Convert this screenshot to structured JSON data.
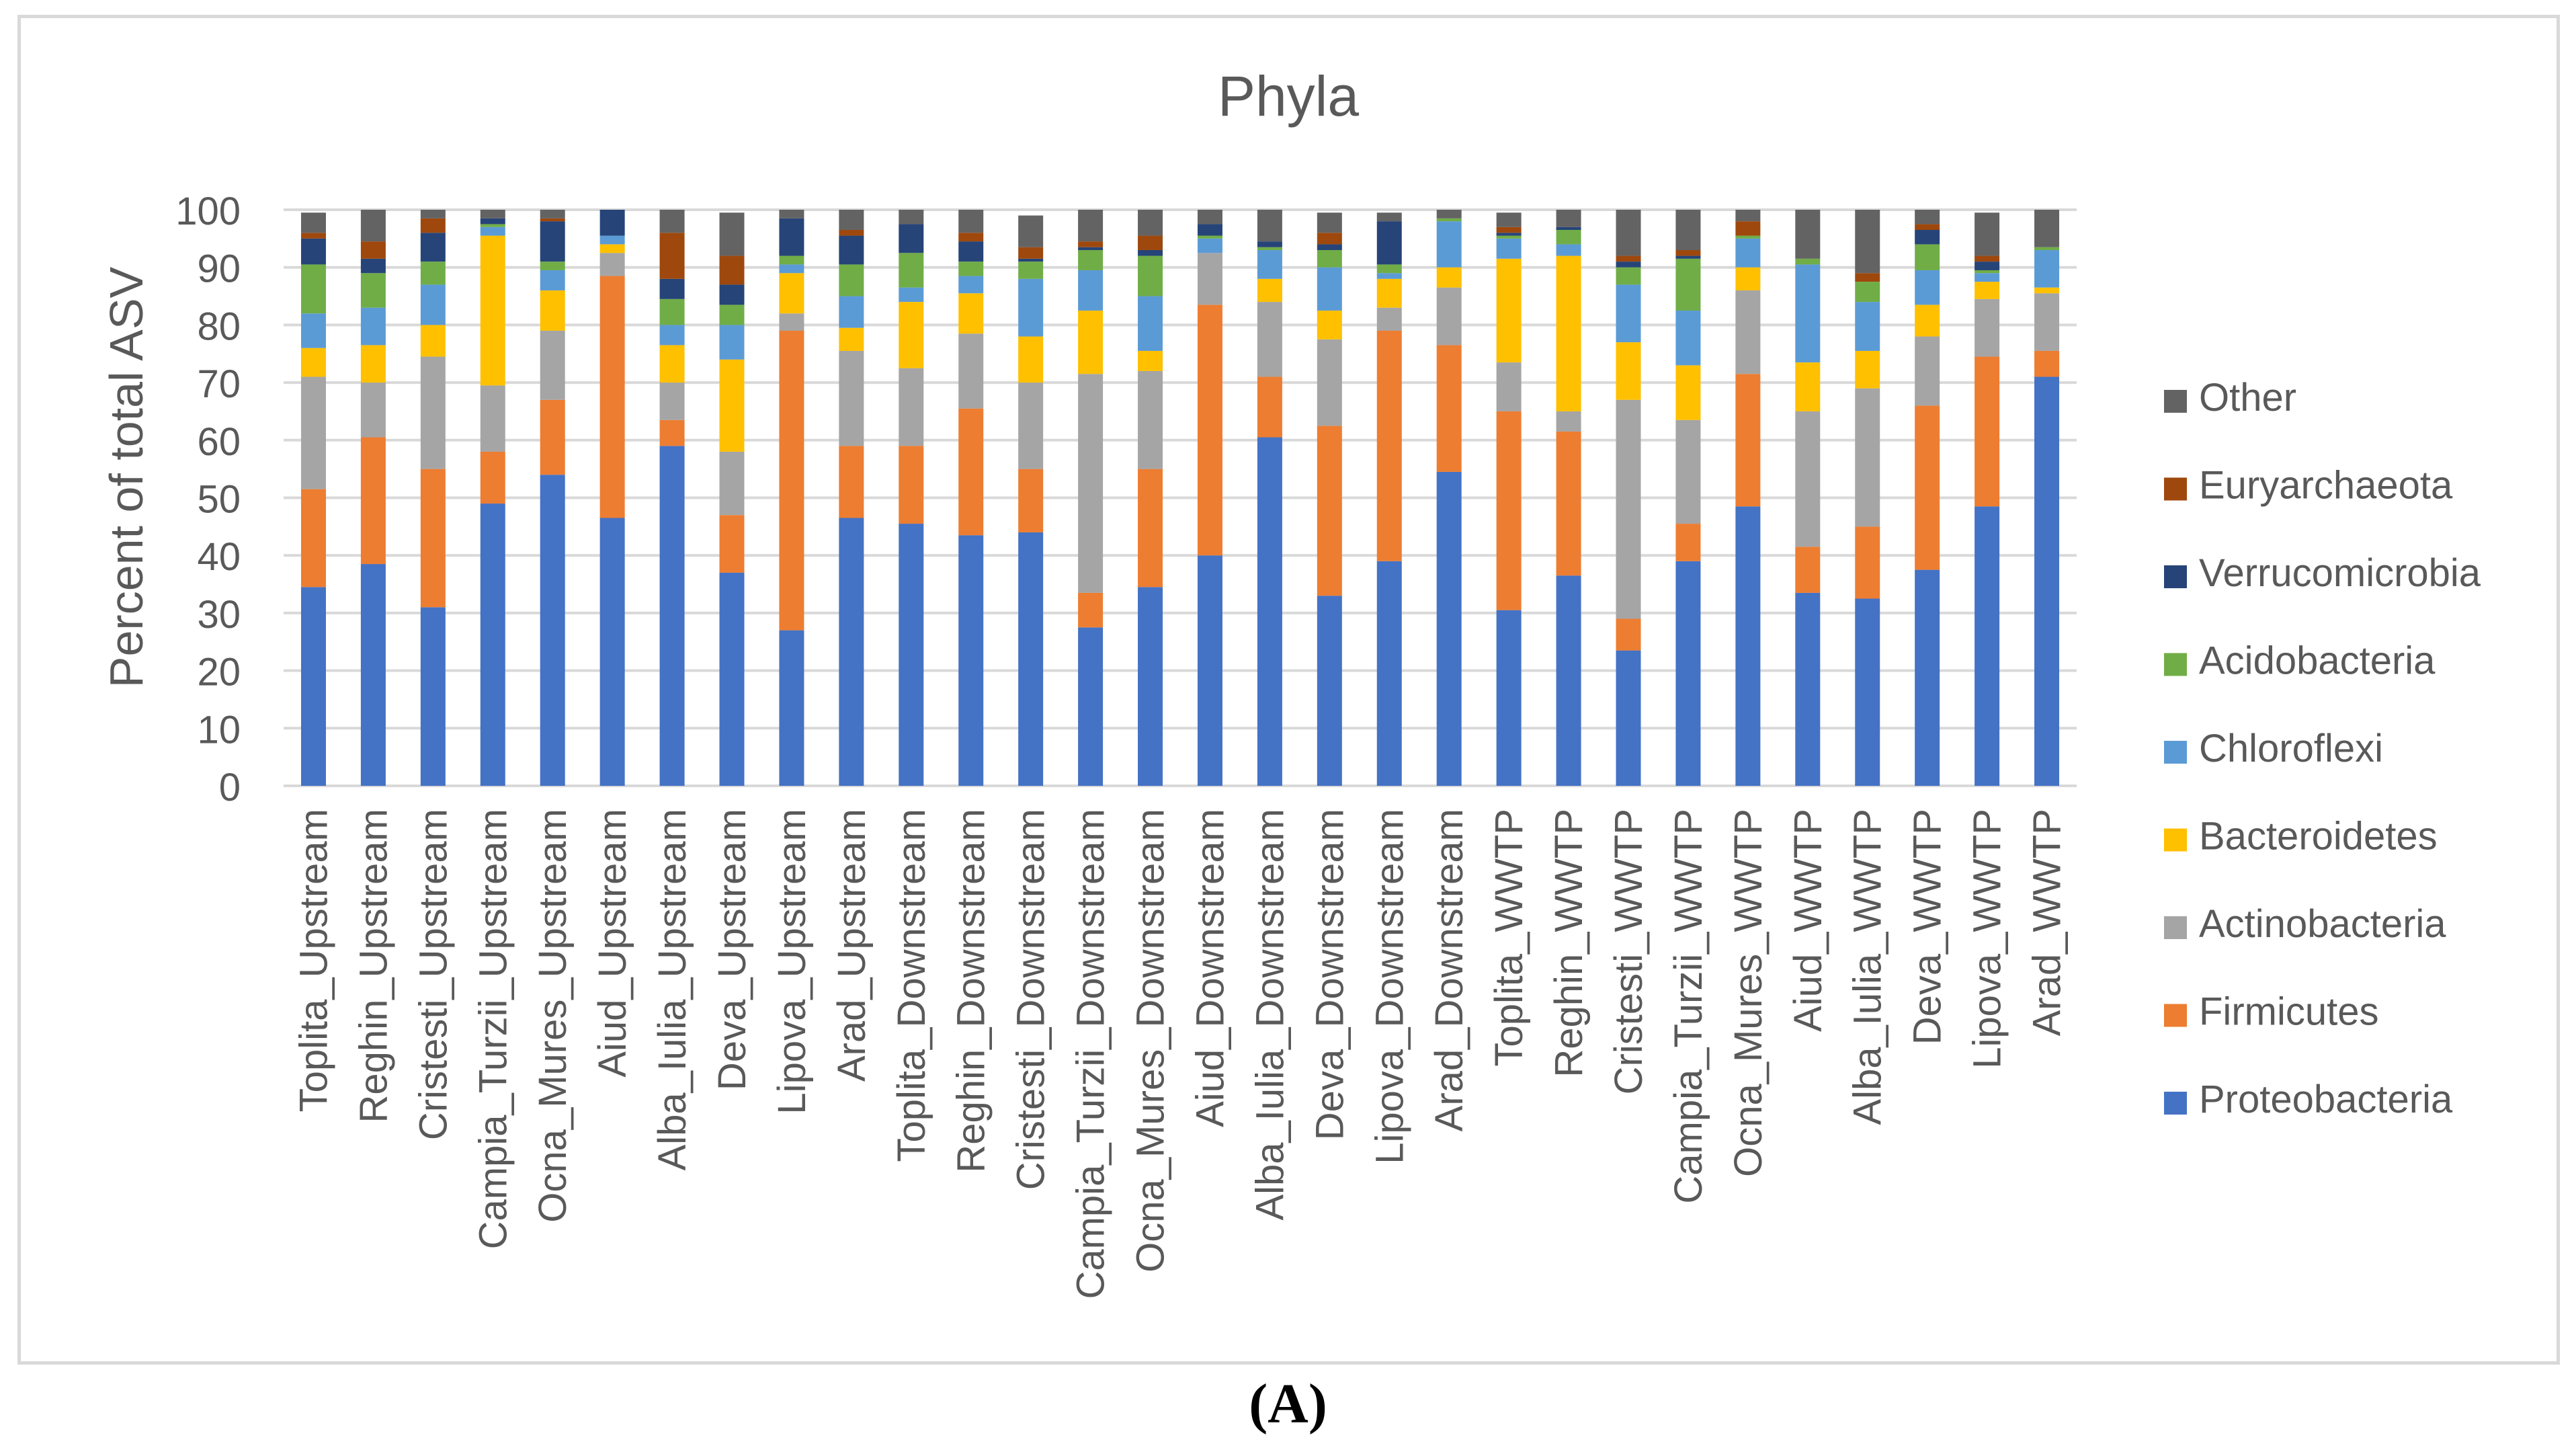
{
  "caption": "(A)",
  "colors": {
    "Proteobacteria": "#4472c4",
    "Firmicutes": "#ed7d31",
    "Actinobacteria": "#a5a5a5",
    "Bacteroidetes": "#ffc000",
    "Chloroflexi": "#5b9bd5",
    "Acidobacteria": "#70ad47",
    "Verrucomicrobia": "#264478",
    "Euryarchaeota": "#9e480e",
    "Other": "#636363"
  },
  "chart_data": {
    "type": "bar",
    "stacked": true,
    "title": "Phyla",
    "xlabel": "",
    "ylabel": "Percent of total ASV",
    "ylim": [
      0,
      100
    ],
    "yticks": [
      0,
      10,
      20,
      30,
      40,
      50,
      60,
      70,
      80,
      90,
      100
    ],
    "grid": true,
    "legend_position": "right",
    "categories": [
      "Toplita_Upstream",
      "Reghin_Upstream",
      "Cristesti_Upstream",
      "Campia_Turzii_Upstream",
      "Ocna_Mures_Upstream",
      "Aiud_Upstream",
      "Alba_Iulia_Upstream",
      "Deva_Upstream",
      "Lipova_Upstream",
      "Arad_Upstream",
      "Toplita_Downstream",
      "Reghin_Downstream",
      "Cristesti_Downstream",
      "Campia_Turzii_Downstream",
      "Ocna_Mures_Downstream",
      "Aiud_Downstream",
      "Alba_Iulia_Downstream",
      "Deva_Downstream",
      "Lipova_Downstream",
      "Arad_Downstream",
      "Toplita_WWTP",
      "Reghin_WWTP",
      "Cristesti_WWTP",
      "Campia_Turzii_WWTP",
      "Ocna_Mures_WWTP",
      "Aiud_WWTP",
      "Alba_Iulia_WWTP",
      "Deva_WWTP",
      "Lipova_WWTP",
      "Arad_WWTP"
    ],
    "series": [
      {
        "name": "Proteobacteria",
        "values": [
          34.5,
          38.5,
          31,
          49,
          54,
          46.5,
          59,
          37,
          27,
          46.5,
          45.5,
          43.5,
          44,
          27.5,
          34.5,
          40,
          60.5,
          33,
          39,
          54.5,
          30.5,
          36.5,
          23.5,
          39,
          48.5,
          33.5,
          32.5,
          37.5,
          48.5,
          71
        ]
      },
      {
        "name": "Firmicutes",
        "values": [
          17,
          22,
          24,
          9,
          13,
          42,
          4.5,
          10,
          52,
          12.5,
          13.5,
          22,
          11,
          6,
          20.5,
          43.5,
          10.5,
          29.5,
          40,
          22,
          34.5,
          25,
          5.5,
          6.5,
          23,
          8,
          12.5,
          28.5,
          26,
          4.5
        ]
      },
      {
        "name": "Actinobacteria",
        "values": [
          19.5,
          9.5,
          19.5,
          11.5,
          12,
          4,
          6.5,
          11,
          3,
          16.5,
          13.5,
          13,
          15,
          38,
          17,
          9,
          13,
          15,
          4,
          10,
          8.5,
          3.5,
          38,
          18,
          14.5,
          23.5,
          24,
          12,
          10,
          10
        ]
      },
      {
        "name": "Bacteroidetes",
        "values": [
          5,
          6.5,
          5.5,
          26,
          7,
          1.5,
          6.5,
          16,
          7,
          4,
          11.5,
          7,
          8,
          11,
          3.5,
          0,
          4,
          5,
          5,
          3.5,
          18,
          27,
          10,
          9.5,
          4,
          8.5,
          6.5,
          5.5,
          3,
          1
        ]
      },
      {
        "name": "Chloroflexi",
        "values": [
          6,
          6.5,
          7,
          1.5,
          3.5,
          1.5,
          3.5,
          6,
          1.5,
          5.5,
          2.5,
          3,
          10,
          7,
          9.5,
          2.5,
          5,
          7.5,
          1,
          8,
          3.5,
          2,
          10,
          9.5,
          5,
          17,
          8.5,
          6,
          1.5,
          6.5
        ]
      },
      {
        "name": "Acidobacteria",
        "values": [
          8.5,
          6,
          4,
          0.5,
          1.5,
          0,
          4.5,
          3.5,
          1.5,
          5.5,
          6,
          2.5,
          3,
          3.5,
          7,
          0.5,
          0.5,
          3,
          1.5,
          0.5,
          0.5,
          2.5,
          3,
          9,
          0.5,
          1,
          3.5,
          4.5,
          0.5,
          0.5
        ]
      },
      {
        "name": "Verrucomicrobia",
        "values": [
          4.5,
          2.5,
          5,
          1,
          7,
          4.5,
          3.5,
          3.5,
          6.5,
          5,
          5,
          3.5,
          0.5,
          0.5,
          1,
          2,
          1,
          1,
          7.5,
          0,
          0.5,
          0.5,
          1,
          0.5,
          0,
          0,
          0,
          2.5,
          1.5,
          0
        ]
      },
      {
        "name": "Euryarchaeota",
        "values": [
          1,
          3,
          2.5,
          0,
          0.5,
          0,
          8,
          5,
          0,
          1,
          0,
          1.5,
          2,
          1,
          2.5,
          0,
          0,
          2,
          0,
          0,
          1,
          0,
          1,
          1,
          2.5,
          0,
          1.5,
          1,
          1,
          0
        ]
      },
      {
        "name": "Other",
        "values": [
          3.5,
          5.5,
          1.5,
          1.5,
          1.5,
          0,
          4,
          7.5,
          1.5,
          3.5,
          2.5,
          4,
          5.5,
          5.5,
          4.5,
          2.5,
          5.5,
          3.5,
          1.5,
          1.5,
          2.5,
          3,
          8,
          7,
          2,
          8.5,
          11,
          2.5,
          7.5,
          6.5
        ]
      }
    ]
  }
}
